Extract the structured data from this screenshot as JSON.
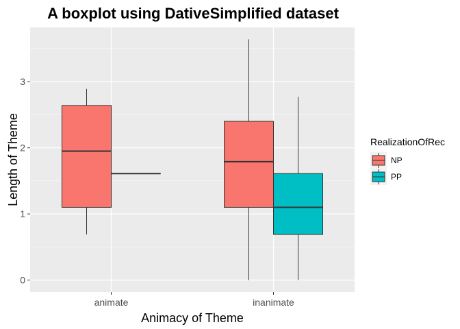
{
  "chart_data": {
    "type": "box",
    "title": "A boxplot using DativeSimplified dataset",
    "xlabel": "Animacy of Theme",
    "ylabel": "Length of Theme",
    "categories": [
      "animate",
      "inanimate"
    ],
    "y_ticks": [
      0,
      1,
      2,
      3
    ],
    "ylim": [
      -0.18,
      3.82
    ],
    "grid": true,
    "legend": {
      "title": "RealizationOfRec",
      "position": "right",
      "entries": [
        "NP",
        "PP"
      ]
    },
    "series": [
      {
        "name": "NP",
        "color": "#F8766D",
        "boxes": [
          {
            "category": "animate",
            "min": 0.69,
            "q1": 1.1,
            "median": 1.95,
            "q3": 2.64,
            "max": 2.89
          },
          {
            "category": "inanimate",
            "min": 0.0,
            "q1": 1.1,
            "median": 1.79,
            "q3": 2.4,
            "max": 3.64
          }
        ]
      },
      {
        "name": "PP",
        "color": "#00BFC4",
        "boxes": [
          {
            "category": "animate",
            "min": 1.61,
            "q1": 1.61,
            "median": 1.61,
            "q3": 1.61,
            "max": 1.61
          },
          {
            "category": "inanimate",
            "min": 0.0,
            "q1": 0.69,
            "median": 1.1,
            "q3": 1.61,
            "max": 2.77
          }
        ]
      }
    ]
  }
}
